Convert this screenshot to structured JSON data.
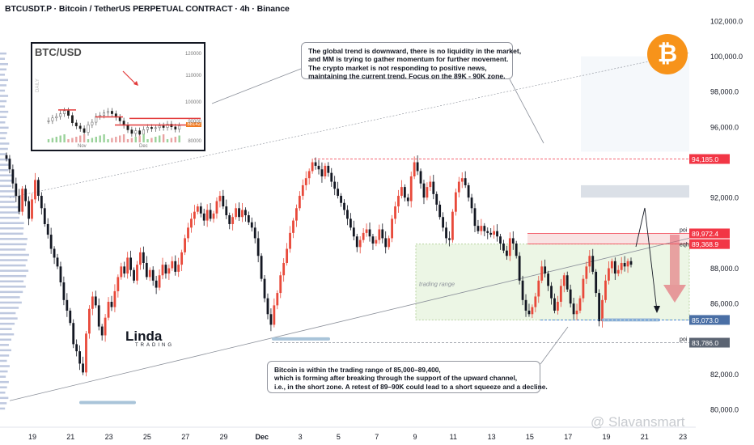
{
  "title": "BTCUSDT.P · Bitcoin / TetherUS PERPETUAL CONTRACT · 4h · Binance",
  "colors": {
    "up": "#e8493a",
    "down": "#131722",
    "level_red": "#f23645",
    "axis_label_blue": "#4a6fa5",
    "range_fill": "#dcefcf",
    "poi_fill": "#d5dbe3",
    "channel": "#8a8f99",
    "bitcoin_orange": "#f7931a"
  },
  "icons": {
    "brand": "bitcoin-logo-icon"
  },
  "callouts": {
    "top": [
      "The global trend is downward, there is no liquidity in the market,",
      "and MM is trying to gather momentum for further movement.",
      "The crypto market is not responding to positive news,",
      "maintaining the current trend. Focus on the 89K - 90K zone."
    ],
    "bottom": [
      "Bitcoin is within the trading range of 85,000–89,400,",
      "which is forming after breaking through the support of the upward channel,",
      "i.e., in the short zone. A retest of 89–90K could lead to a short squeeze and a decline."
    ]
  },
  "inset": {
    "title": "BTC/USD",
    "side_label": "DAILY",
    "y_ticks": [
      "120000",
      "110000",
      "100000",
      "90000",
      "80000"
    ],
    "x_ticks": [
      "Nov",
      "Dec"
    ],
    "badge": "88142",
    "close_values": [
      90500,
      91800,
      92500,
      93800,
      95200,
      93000,
      89500,
      88000,
      86800,
      85000,
      88600,
      89800,
      92500,
      93100,
      94200,
      95000,
      93800,
      92100,
      90400,
      88300,
      86200,
      84500,
      85800,
      84100,
      86300,
      87400,
      86800,
      87200,
      88100,
      87300,
      88900,
      87600,
      86500,
      88142
    ],
    "levels": [
      {
        "value": 92300
      },
      {
        "value": 88500
      }
    ]
  },
  "brand_logo": {
    "label": "Linda",
    "sublabel": "TRADING"
  },
  "watermark": "@ Slavansmart",
  "chart_data": {
    "type": "candlestick",
    "title": "BTCUSDT.P · Bitcoin / TetherUS PERPETUAL CONTRACT · 4h · Binance",
    "ylim": [
      79000,
      102500
    ],
    "y_ticks": [
      80000,
      82000,
      84000,
      86000,
      88000,
      90000,
      92000,
      94000,
      96000,
      98000,
      100000,
      102000
    ],
    "y_tick_labels": [
      "80,000.0",
      "82,000.0",
      "84,000.0",
      "86,000.0",
      "88,000.0",
      "90,000.0",
      "92,000.0",
      "94,000.0",
      "96,000.0",
      "98,000.0",
      "100,000.0",
      "102,000.0"
    ],
    "x_tick_labels": [
      "19",
      "21",
      "23",
      "25",
      "27",
      "29",
      "Dec",
      "3",
      "5",
      "7",
      "9",
      "11",
      "13",
      "15",
      "17",
      "19",
      "21",
      "23"
    ],
    "x_tick_bold": "Dec",
    "close_series": [
      94200,
      93600,
      92800,
      92100,
      91200,
      92500,
      91800,
      90800,
      91900,
      93000,
      92100,
      91400,
      90500,
      89900,
      89100,
      88600,
      88100,
      87200,
      86200,
      85600,
      84900,
      83700,
      83300,
      82600,
      82100,
      84300,
      85700,
      86400,
      85900,
      84700,
      84200,
      85200,
      86100,
      85800,
      86700,
      87500,
      88100,
      87700,
      88600,
      87900,
      87300,
      88200,
      88900,
      88300,
      87500,
      87900,
      87300,
      86900,
      87600,
      88200,
      87700,
      88000,
      88400,
      87800,
      88200,
      88900,
      89700,
      90300,
      90800,
      91200,
      91500,
      91100,
      90700,
      91300,
      90800,
      91100,
      91800,
      92100,
      91500,
      91000,
      90500,
      90900,
      91400,
      90900,
      91300,
      91000,
      90600,
      90300,
      89700,
      88700,
      87400,
      86300,
      85400,
      84800,
      85900,
      86600,
      87600,
      88300,
      89100,
      90000,
      90700,
      91400,
      92100,
      92700,
      93100,
      93500,
      94000,
      93800,
      93600,
      93200,
      93800,
      93400,
      92900,
      92500,
      92100,
      91700,
      91300,
      90800,
      90300,
      89800,
      89200,
      89600,
      90000,
      90200,
      89800,
      89400,
      89600,
      90200,
      89700,
      89200,
      89700,
      90800,
      91500,
      92100,
      92600,
      92000,
      91800,
      93200,
      94000,
      93500,
      92800,
      92000,
      92600,
      92900,
      92200,
      91600,
      90900,
      90300,
      89700,
      89600,
      91200,
      92300,
      92900,
      93100,
      92700,
      92000,
      91400,
      90400,
      90100,
      90400,
      90100,
      90000,
      89900,
      90100,
      89800,
      89400,
      89000,
      88700,
      89700,
      89400,
      88700,
      87300,
      86200,
      85600,
      85400,
      85800,
      86400,
      87300,
      88100,
      87700,
      87000,
      86300,
      85600,
      86100,
      87000,
      87600,
      86800,
      86000,
      85400,
      85600,
      86300,
      87400,
      88100,
      88700,
      87800,
      86600,
      85000,
      86200,
      87300,
      88000,
      88400,
      87700,
      87900,
      88300,
      88100,
      88400,
      88200
    ],
    "series": [
      {
        "name": "",
        "values": []
      }
    ],
    "levels": [
      {
        "label": "94,185.0",
        "value": 94185,
        "style": "dashed-red"
      },
      {
        "label": "89,972.4",
        "value": 89972.4,
        "tag": "poi",
        "style": "solid-red"
      },
      {
        "label": "89,368.9",
        "value": 89368.9,
        "tag": "eqh",
        "style": "solid-red"
      },
      {
        "label": "85,073.0",
        "value": 85073,
        "style": "dashed-blue"
      },
      {
        "label": "83,786.0",
        "value": 83786,
        "tag": "poi",
        "style": "dashed-gray"
      }
    ],
    "zones": [
      {
        "label": "trading range",
        "from": 85073,
        "to": 89368.9,
        "kind": "range"
      },
      {
        "label": "",
        "from": 92000,
        "to": 92700,
        "kind": "poi"
      },
      {
        "label": "",
        "from": 89368.9,
        "to": 89972.4,
        "kind": "poi-red"
      }
    ]
  }
}
